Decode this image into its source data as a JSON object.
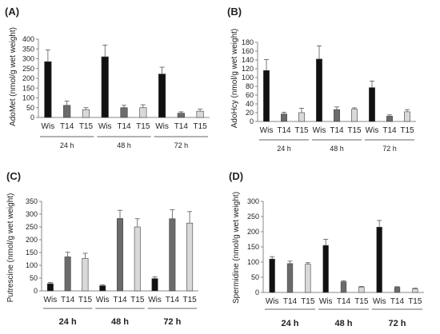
{
  "chart_data": [
    {
      "type": "bar",
      "panel_label": "(A)",
      "ylabel": "AdoMet (nmol/g wet weight)",
      "yticks": [
        0,
        50,
        100,
        150,
        200,
        250,
        300,
        350,
        400
      ],
      "ylim": [
        0,
        400
      ],
      "groups": [
        {
          "label": "24 h",
          "categories": [
            "Wis",
            "T14",
            "T15"
          ],
          "values": [
            285,
            62,
            40
          ],
          "errors": [
            60,
            22,
            10
          ]
        },
        {
          "label": "48 h",
          "categories": [
            "Wis",
            "T14",
            "T15"
          ],
          "values": [
            310,
            50,
            50
          ],
          "errors": [
            60,
            12,
            15
          ]
        },
        {
          "label": "72 h",
          "categories": [
            "Wis",
            "T14",
            "T15"
          ],
          "values": [
            222,
            22,
            32
          ],
          "errors": [
            35,
            7,
            10
          ]
        }
      ],
      "colors": [
        "#111111",
        "#6b6b6b",
        "#d9d9d9"
      ],
      "group_label_bold": false
    },
    {
      "type": "bar",
      "panel_label": "(B)",
      "ylabel": "AdoHcy (nmol/g wet weight)",
      "yticks": [
        0,
        20,
        40,
        60,
        80,
        100,
        120,
        140,
        160,
        180
      ],
      "ylim": [
        0,
        180
      ],
      "groups": [
        {
          "label": "24 h",
          "categories": [
            "Wis",
            "T14",
            "T15"
          ],
          "values": [
            116,
            17,
            20
          ],
          "errors": [
            25,
            4,
            10
          ]
        },
        {
          "label": "48 h",
          "categories": [
            "Wis",
            "T14",
            "T15"
          ],
          "values": [
            142,
            27,
            28
          ],
          "errors": [
            30,
            6,
            3
          ]
        },
        {
          "label": "72 h",
          "categories": [
            "Wis",
            "T14",
            "T15"
          ],
          "values": [
            77,
            12,
            22
          ],
          "errors": [
            15,
            3,
            5
          ]
        }
      ],
      "colors": [
        "#111111",
        "#6b6b6b",
        "#d9d9d9"
      ],
      "group_label_bold": false
    },
    {
      "type": "bar",
      "panel_label": "(C)",
      "ylabel": "Putrescine (nmol/g wet weight)",
      "yticks": [
        0,
        50,
        100,
        150,
        200,
        250,
        300,
        350
      ],
      "ylim": [
        0,
        350
      ],
      "groups": [
        {
          "label": "24 h",
          "categories": [
            "Wis",
            "T14",
            "T15"
          ],
          "values": [
            28,
            133,
            127
          ],
          "errors": [
            5,
            18,
            20
          ]
        },
        {
          "label": "48 h",
          "categories": [
            "Wis",
            "T14",
            "T15"
          ],
          "values": [
            20,
            283,
            250
          ],
          "errors": [
            4,
            32,
            32
          ]
        },
        {
          "label": "72 h",
          "categories": [
            "Wis",
            "T14",
            "T15"
          ],
          "values": [
            48,
            282,
            265
          ],
          "errors": [
            7,
            35,
            45
          ]
        }
      ],
      "colors": [
        "#111111",
        "#6b6b6b",
        "#d9d9d9"
      ],
      "group_label_bold": true
    },
    {
      "type": "bar",
      "panel_label": "(D)",
      "ylabel": "Spermidine (nmol/g wet weight)",
      "yticks": [
        0,
        50,
        100,
        150,
        200,
        250,
        300
      ],
      "ylim": [
        0,
        300
      ],
      "groups": [
        {
          "label": "24 h",
          "categories": [
            "Wis",
            "T14",
            "T15"
          ],
          "values": [
            110,
            95,
            93
          ],
          "errors": [
            8,
            8,
            5
          ]
        },
        {
          "label": "48 h",
          "categories": [
            "Wis",
            "T14",
            "T15"
          ],
          "values": [
            155,
            35,
            18
          ],
          "errors": [
            20,
            3,
            2
          ]
        },
        {
          "label": "72 h",
          "categories": [
            "Wis",
            "T14",
            "T15"
          ],
          "values": [
            215,
            17,
            12
          ],
          "errors": [
            22,
            2,
            2
          ]
        }
      ],
      "colors": [
        "#111111",
        "#6b6b6b",
        "#d9d9d9"
      ],
      "group_label_bold": true
    }
  ]
}
